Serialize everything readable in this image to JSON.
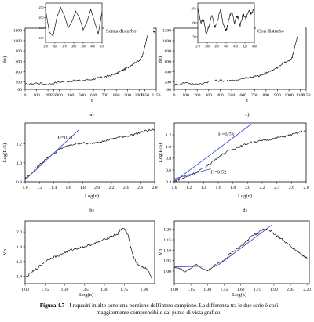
{
  "caption": {
    "label": "Figura 4.7 - ",
    "text": "I riquadri in alto sono una porzione dell'intero campione. La differenza tra le due serie è così maggiormente comprensibile dal punto di vista grafico."
  },
  "chart_data": [
    {
      "id": "a",
      "type": "line",
      "panel_label": "a)",
      "xlabel": "t",
      "ylabel": "f(t)",
      "annotation": "Senza disturbo",
      "xlim": [
        0,
        1150
      ],
      "ylim": [
        60,
        1240
      ],
      "xticks": [
        0,
        100,
        200,
        250,
        300,
        400,
        500,
        600,
        700,
        800,
        900,
        1000,
        1050,
        1150
      ],
      "xtick_labels": [
        "0",
        "100",
        "200",
        "250",
        "300",
        "400",
        "500",
        "600",
        "700",
        "800",
        "900",
        "1000",
        "1050",
        "1150"
      ],
      "yticks": [
        60,
        200,
        400,
        600,
        800,
        1000,
        1200
      ],
      "ytick_labels": [
        "60",
        "200",
        "400",
        "600",
        "800",
        "1000",
        "1200"
      ],
      "series": [
        {
          "x": [
            0,
            100,
            200,
            300,
            400,
            500,
            600,
            650,
            700,
            750,
            800,
            850,
            900,
            950,
            1000,
            1030,
            1050,
            1080,
            1100,
            1120,
            1140
          ],
          "y": [
            150,
            180,
            160,
            200,
            220,
            230,
            260,
            280,
            300,
            330,
            360,
            420,
            480,
            560,
            620,
            700,
            900,
            1150,
            1200,
            1180,
            1160
          ]
        }
      ],
      "inset": {
        "xticks": [
          350,
          360,
          370,
          380,
          390,
          400,
          410
        ],
        "xtick_labels": [
          "350",
          "360",
          "370",
          "380",
          "390",
          "400",
          "410"
        ],
        "yticks": [
          100,
          150,
          200,
          250
        ],
        "ytick_labels": [
          "100",
          "150",
          "200",
          "250"
        ],
        "xlim": [
          350,
          410
        ],
        "ylim": [
          80,
          270
        ],
        "series": [
          {
            "x": [
              350,
              354,
              358,
              362,
              366,
              370,
              374,
              378,
              382,
              386,
              390,
              394,
              398,
              402,
              406,
              410
            ],
            "y": [
              240,
              130,
              110,
              200,
              250,
              210,
              150,
              180,
              230,
              200,
              140,
              180,
              240,
              180,
              120,
              230
            ]
          }
        ]
      }
    },
    {
      "id": "c",
      "type": "line",
      "panel_label": "c)",
      "xlabel": "t",
      "ylabel": "f(t)",
      "annotation": "Con disturbo",
      "xlim": [
        0,
        1150
      ],
      "ylim": [
        60,
        1240
      ],
      "xticks": [
        0,
        100,
        200,
        300,
        400,
        500,
        600,
        700,
        800,
        900,
        1000,
        1100,
        1150
      ],
      "xtick_labels": [
        "0",
        "100",
        "200",
        "300",
        "400",
        "500",
        "600",
        "700",
        "800",
        "900",
        "1000",
        "1100",
        "1150"
      ],
      "yticks": [
        60,
        200,
        400,
        600,
        800,
        1000,
        1200
      ],
      "ytick_labels": [
        "60",
        "200",
        "400",
        "600",
        "800",
        "1000",
        "1200"
      ],
      "series": [
        {
          "x": [
            0,
            100,
            200,
            300,
            400,
            500,
            600,
            650,
            700,
            750,
            800,
            850,
            900,
            950,
            1000,
            1030,
            1050,
            1080,
            1100,
            1120,
            1140
          ],
          "y": [
            140,
            190,
            150,
            210,
            230,
            220,
            270,
            290,
            310,
            320,
            370,
            430,
            470,
            570,
            610,
            690,
            880,
            1120,
            1210,
            1170,
            1150
          ]
        }
      ],
      "inset": {
        "xticks": [
          370,
          380,
          390,
          400,
          410,
          420,
          430
        ],
        "xtick_labels": [
          "370",
          "380",
          "390",
          "400",
          "410",
          "420",
          "430"
        ],
        "yticks": [
          150,
          200,
          250
        ],
        "ytick_labels": [
          "150",
          "200",
          "250"
        ],
        "xlim": [
          370,
          430
        ],
        "ylim": [
          130,
          270
        ],
        "series": [
          {
            "x": [
              370,
              373,
              376,
              379,
              382,
              385,
              388,
              391,
              394,
              397,
              400,
              403,
              406,
              409,
              412,
              415,
              418,
              421,
              424,
              427,
              430
            ],
            "y": [
              250,
              200,
              210,
              160,
              190,
              230,
              180,
              210,
              250,
              190,
              170,
              215,
              240,
              200,
              225,
              190,
              230,
              215,
              245,
              230,
              255
            ]
          }
        ]
      }
    },
    {
      "id": "b",
      "type": "line",
      "panel_label": "b)",
      "xlabel": "Log(n)",
      "ylabel": "Log(R/S)",
      "xlim": [
        1.0,
        2.8
      ],
      "ylim": [
        0.8,
        1.42
      ],
      "xticks": [
        1.0,
        1.2,
        1.4,
        1.6,
        1.8,
        2.0,
        2.2,
        2.4,
        2.6,
        2.8
      ],
      "xtick_labels": [
        "1.0",
        "1.2",
        "1.4",
        "1.6",
        "1.8",
        "2.0",
        "2.2",
        "2.4",
        "2.6",
        "2.8"
      ],
      "yticks": [
        0.8,
        1.0,
        1.2
      ],
      "ytick_labels": [
        "0.8",
        "1.0",
        "1.2"
      ],
      "annotations": [
        {
          "text": "H=0.71",
          "x": 1.45,
          "y": 1.25
        }
      ],
      "series": [
        {
          "x": [
            1.0,
            1.1,
            1.2,
            1.3,
            1.4,
            1.5,
            1.6,
            1.7,
            1.8,
            1.9,
            2.0,
            2.1,
            2.2,
            2.3,
            2.4,
            2.5,
            2.6,
            2.7,
            2.8
          ],
          "y": [
            0.83,
            0.9,
            0.98,
            1.05,
            1.1,
            1.15,
            1.18,
            1.2,
            1.21,
            1.2,
            1.22,
            1.23,
            1.25,
            1.27,
            1.28,
            1.3,
            1.32,
            1.34,
            1.35
          ]
        }
      ],
      "fits": [
        {
          "x": [
            1.0,
            1.75
          ],
          "y": [
            0.82,
            1.35
          ]
        }
      ]
    },
    {
      "id": "d",
      "type": "line",
      "panel_label": "d)",
      "xlabel": "Log(n)",
      "ylabel": "Log(R/S)",
      "xlim": [
        1.0,
        2.8
      ],
      "ylim": [
        0.4,
        1.4
      ],
      "xticks": [
        1.0,
        1.2,
        1.4,
        1.6,
        1.8,
        2.0,
        2.2,
        2.4,
        2.6,
        2.8
      ],
      "xtick_labels": [
        "1.0",
        "1.2",
        "1.4",
        "1.6",
        "1.8",
        "2.0",
        "2.2",
        "2.4",
        "2.6",
        "2.8"
      ],
      "yticks": [
        0.4,
        0.6,
        0.8,
        1.0,
        1.2
      ],
      "ytick_labels": [
        "0.4",
        "0.6",
        "0.8",
        "1.0",
        "1.2"
      ],
      "annotations": [
        {
          "text": "H=0.78",
          "x": 1.6,
          "y": 1.18
        },
        {
          "text": "H=0.52",
          "x": 1.5,
          "y": 0.54
        }
      ],
      "series": [
        {
          "x": [
            1.0,
            1.1,
            1.2,
            1.3,
            1.4,
            1.5,
            1.6,
            1.7,
            1.8,
            1.9,
            2.0,
            2.1,
            2.2,
            2.3,
            2.4,
            2.5,
            2.6,
            2.7,
            2.8
          ],
          "y": [
            0.42,
            0.45,
            0.5,
            0.56,
            0.63,
            0.72,
            0.82,
            0.9,
            0.96,
            1.0,
            1.05,
            1.08,
            1.1,
            1.12,
            1.15,
            1.17,
            1.2,
            1.24,
            1.27
          ]
        }
      ],
      "fits": [
        {
          "x": [
            1.0,
            2.05
          ],
          "y": [
            0.4,
            1.38
          ]
        },
        {
          "x": [
            1.0,
            1.5
          ],
          "y": [
            0.45,
            0.62
          ]
        }
      ]
    },
    {
      "id": "e",
      "type": "line",
      "panel_label": "",
      "xlabel": "Log(n)",
      "ylabel": "Vn",
      "xlim": [
        1.0,
        1.98
      ],
      "ylim": [
        1.3,
        2.15
      ],
      "xticks": [
        1.0,
        1.15,
        1.3,
        1.45,
        1.6,
        1.75,
        1.9
      ],
      "xtick_labels": [
        "1.00",
        "1.15",
        "1.30",
        "1.45",
        "1.60",
        "1.75",
        "1.90"
      ],
      "yticks": [
        1.4,
        1.6,
        1.8,
        2.0
      ],
      "ytick_labels": [
        "1.4",
        "1.6",
        "1.8",
        "2.0"
      ],
      "series": [
        {
          "x": [
            1.0,
            1.05,
            1.1,
            1.15,
            1.2,
            1.25,
            1.3,
            1.35,
            1.4,
            1.45,
            1.5,
            1.55,
            1.6,
            1.65,
            1.7,
            1.72,
            1.75,
            1.78,
            1.8,
            1.83,
            1.86,
            1.9,
            1.93,
            1.96
          ],
          "y": [
            1.38,
            1.45,
            1.52,
            1.6,
            1.65,
            1.68,
            1.72,
            1.76,
            1.78,
            1.8,
            1.83,
            1.86,
            1.9,
            1.94,
            1.97,
            2.03,
            2.05,
            1.95,
            1.78,
            1.62,
            1.55,
            1.52,
            1.48,
            1.35
          ]
        }
      ]
    },
    {
      "id": "f",
      "type": "line",
      "panel_label": "",
      "xlabel": "Log(n)",
      "ylabel": "Vn",
      "xlim": [
        1.0,
        2.22
      ],
      "ylim": [
        0.94,
        1.24
      ],
      "xticks": [
        1.0,
        1.15,
        1.3,
        1.45,
        1.6,
        1.75,
        1.9,
        2.05,
        2.2
      ],
      "xtick_labels": [
        "1.00",
        "1.15",
        "1.30",
        "1.45",
        "1.60",
        "1.75",
        "1.90",
        "2.05",
        "2.20"
      ],
      "yticks": [
        1.0,
        1.05,
        1.1,
        1.15,
        1.2
      ],
      "ytick_labels": [
        "1.00",
        "1.05",
        "1.10",
        "1.15",
        "1.20"
      ],
      "series": [
        {
          "x": [
            1.0,
            1.1,
            1.2,
            1.3,
            1.35,
            1.4,
            1.45,
            1.5,
            1.55,
            1.6,
            1.65,
            1.7,
            1.75,
            1.8,
            1.85,
            1.9,
            1.95,
            2.0,
            2.05,
            2.1,
            2.15,
            2.2
          ],
          "y": [
            1.02,
            1.0,
            1.03,
            1.0,
            1.02,
            1.04,
            1.05,
            1.08,
            1.1,
            1.12,
            1.14,
            1.17,
            1.18,
            1.2,
            1.2,
            1.18,
            1.16,
            1.14,
            1.12,
            1.1,
            1.08,
            1.06
          ]
        }
      ],
      "fits": [
        {
          "x": [
            1.4,
            1.88
          ],
          "y": [
            1.03,
            1.22
          ]
        },
        {
          "x": [
            1.0,
            1.4
          ],
          "y": [
            1.02,
            1.025
          ]
        }
      ]
    }
  ]
}
